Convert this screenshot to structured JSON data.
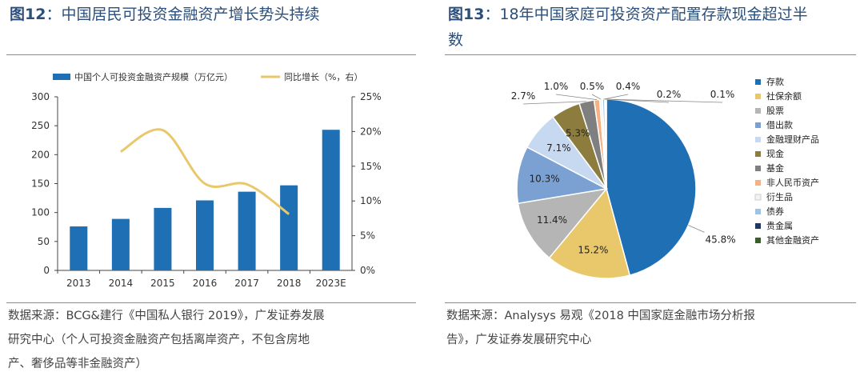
{
  "left": {
    "figure_label": "图12",
    "figure_title": "中国居民可投资金融资产增长势头持续",
    "source_line1": "数据来源：BCG&建行《中国私人银行 2019》，广发证券发展",
    "source_line2": "研究中心（个人可投资金融资产包括离岸资产，不包含房地",
    "source_line3": "产、奢侈品等非金融资产）"
  },
  "right": {
    "figure_label": "图13",
    "figure_title_line1": "18年中国家庭可投资资产配置存款现金超过半",
    "figure_title_line2": "数",
    "source_line1": "数据来源：Analysys 易观《2018 中国家庭金融市场分析报",
    "source_line2": "告》，广发证券发展研究中心"
  },
  "chart_data": [
    {
      "type": "bar+line",
      "title": "中国居民可投资金融资产增长势头持续",
      "categories": [
        "2013",
        "2014",
        "2015",
        "2016",
        "2017",
        "2018",
        "2023E"
      ],
      "series": [
        {
          "name": "中国个人可投资金融资产规模（万亿元）",
          "kind": "bar",
          "axis": "left",
          "color": "#1f6fb4",
          "values": [
            76,
            89,
            108,
            121,
            136,
            147,
            243
          ]
        },
        {
          "name": "同比增长（%，右）",
          "kind": "line",
          "axis": "right",
          "color": "#e8c86a",
          "values": [
            null,
            17.1,
            20.2,
            12.5,
            12.4,
            8.1,
            null
          ]
        }
      ],
      "ylim": [
        0,
        300
      ],
      "yticks": [
        "0",
        "50",
        "100",
        "150",
        "200",
        "250",
        "300"
      ],
      "y2lim": [
        0,
        25
      ],
      "y2ticks": [
        "0%",
        "5%",
        "10%",
        "15%",
        "20%",
        "25%"
      ]
    },
    {
      "type": "pie",
      "title": "18年中国家庭可投资资产配置存款现金超过半数",
      "slices": [
        {
          "label": "存款",
          "value": 45.8,
          "text": "45.8%",
          "color": "#1f6fb4"
        },
        {
          "label": "社保余额",
          "value": 15.2,
          "text": "15.2%",
          "color": "#e8c86a"
        },
        {
          "label": "股票",
          "value": 11.4,
          "text": "11.4%",
          "color": "#b5b5b5"
        },
        {
          "label": "借出款",
          "value": 10.3,
          "text": "10.3%",
          "color": "#7ba1d3"
        },
        {
          "label": "金融理财产品",
          "value": 7.1,
          "text": "7.1%",
          "color": "#c6d9f0"
        },
        {
          "label": "现金",
          "value": 5.3,
          "text": "5.3%",
          "color": "#8c7d3e"
        },
        {
          "label": "基金",
          "value": 2.7,
          "text": "2.7%",
          "color": "#7f7f7f"
        },
        {
          "label": "非人民币资产",
          "value": 1.0,
          "text": "1.0%",
          "color": "#f4b183"
        },
        {
          "label": "衍生品",
          "value": 0.5,
          "text": "0.5%",
          "color": "#f2f2f2"
        },
        {
          "label": "债券",
          "value": 0.4,
          "text": "0.4%",
          "color": "#9dc3e6"
        },
        {
          "label": "贵金属",
          "value": 0.2,
          "text": "0.2%",
          "color": "#1f3864"
        },
        {
          "label": "其他金融资产",
          "value": 0.1,
          "text": "0.1%",
          "color": "#3a5e2a"
        }
      ]
    }
  ]
}
